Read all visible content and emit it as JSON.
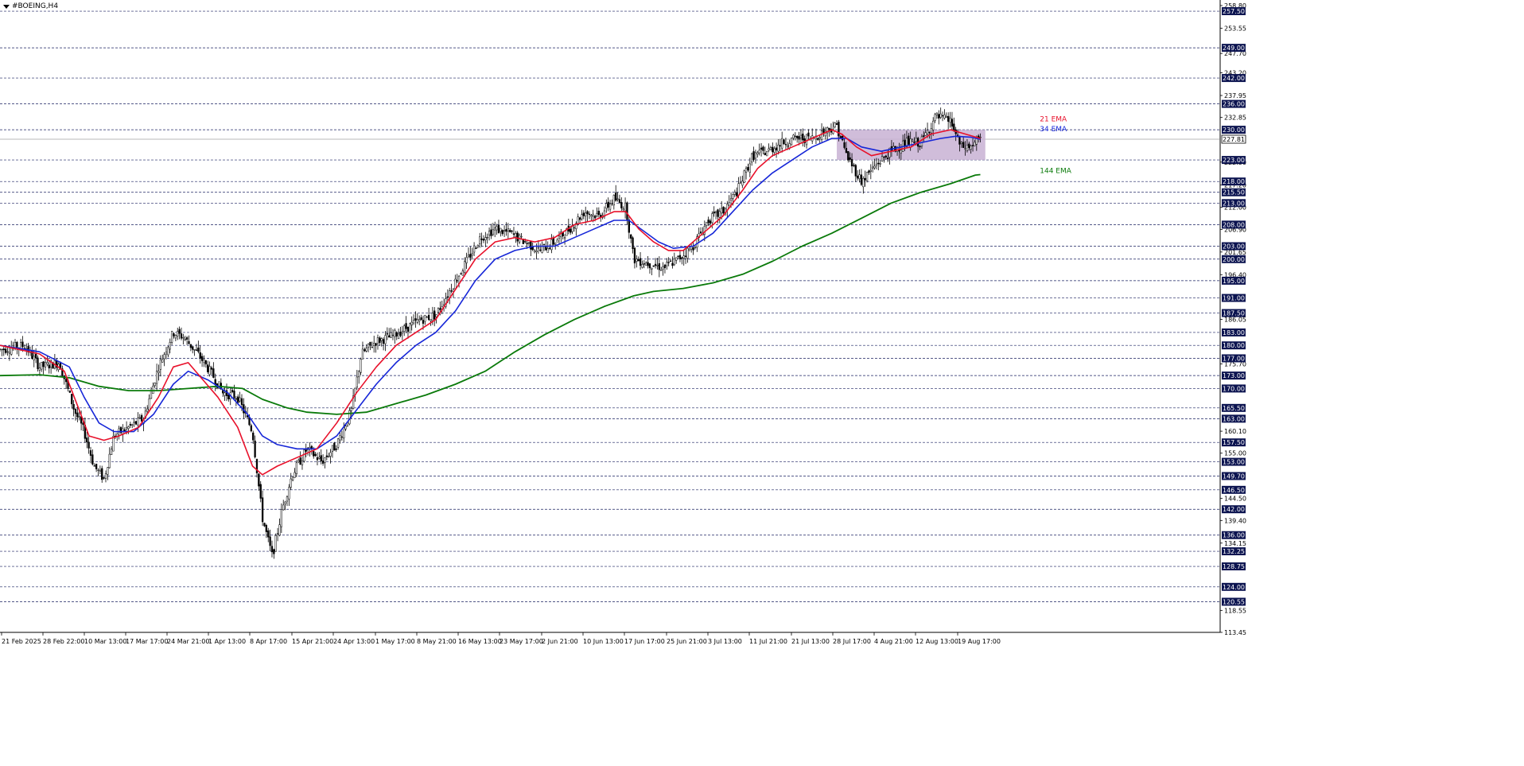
{
  "window": {
    "symbol_title": "#BOEING,H4"
  },
  "colors": {
    "background": "#ffffff",
    "grid_dashed": "#1a2060",
    "ema21": "#e8102a",
    "ema34": "#1626d8",
    "ema144": "#0a7a0a",
    "zone_fill": "#c8b2d4",
    "price_label_bg": "#0c1450",
    "current_price_bg": "#ffffff",
    "candle": "#000000"
  },
  "chart_data": {
    "type": "candlestick",
    "instrument": "#BOEING",
    "timeframe": "H4",
    "y_range": [
      113.45,
      258.8
    ],
    "current_price": 227.81,
    "horizontal_levels": [
      257.5,
      249.0,
      242.0,
      236.0,
      230.0,
      223.0,
      218.0,
      215.5,
      213.0,
      208.0,
      203.0,
      200.0,
      195.0,
      191.0,
      187.5,
      183.0,
      180.0,
      177.0,
      173.0,
      170.0,
      165.5,
      163.0,
      157.5,
      153.0,
      149.7,
      146.5,
      142.0,
      136.0,
      132.25,
      128.75,
      124.0,
      120.55
    ],
    "axis_ticks": [
      "258.80",
      "253.55",
      "247.70",
      "243.20",
      "237.95",
      "232.85",
      "222.50",
      "217.20",
      "212.00",
      "206.90",
      "201.65",
      "196.40",
      "186.05",
      "175.70",
      "160.10",
      "155.00",
      "144.50",
      "139.40",
      "134.15",
      "118.55",
      "113.45"
    ],
    "x_labels": [
      "21 Feb 2025",
      "28 Feb 22:00",
      "10 Mar 13:00",
      "17 Mar 17:00",
      "24 Mar 21:00",
      "1 Apr 13:00",
      "8 Apr 17:00",
      "15 Apr 21:00",
      "24 Apr 13:00",
      "1 May 17:00",
      "8 May 21:00",
      "16 May 13:00",
      "23 May 17:00",
      "2 Jun 21:00",
      "10 Jun 13:00",
      "17 Jun 17:00",
      "25 Jun 21:00",
      "3 Jul 13:00",
      "11 Jul 21:00",
      "21 Jul 13:00",
      "28 Jul 17:00",
      "4 Aug 21:00",
      "12 Aug 13:00",
      "19 Aug 17:00"
    ],
    "price_path": [
      [
        0,
        179
      ],
      [
        0.025,
        180
      ],
      [
        0.04,
        175
      ],
      [
        0.06,
        176
      ],
      [
        0.075,
        165
      ],
      [
        0.085,
        160
      ],
      [
        0.095,
        152
      ],
      [
        0.105,
        149
      ],
      [
        0.115,
        159
      ],
      [
        0.13,
        161
      ],
      [
        0.145,
        163
      ],
      [
        0.16,
        175
      ],
      [
        0.175,
        183
      ],
      [
        0.185,
        182
      ],
      [
        0.2,
        178
      ],
      [
        0.215,
        173
      ],
      [
        0.225,
        169
      ],
      [
        0.24,
        168
      ],
      [
        0.255,
        160
      ],
      [
        0.265,
        140
      ],
      [
        0.275,
        131
      ],
      [
        0.285,
        142
      ],
      [
        0.295,
        150
      ],
      [
        0.31,
        156
      ],
      [
        0.325,
        153
      ],
      [
        0.34,
        157
      ],
      [
        0.355,
        165
      ],
      [
        0.365,
        178
      ],
      [
        0.38,
        181
      ],
      [
        0.395,
        182
      ],
      [
        0.41,
        184
      ],
      [
        0.425,
        186
      ],
      [
        0.44,
        187
      ],
      [
        0.455,
        193
      ],
      [
        0.47,
        199
      ],
      [
        0.485,
        205
      ],
      [
        0.5,
        207
      ],
      [
        0.515,
        206
      ],
      [
        0.53,
        204
      ],
      [
        0.545,
        202
      ],
      [
        0.56,
        204
      ],
      [
        0.575,
        207
      ],
      [
        0.59,
        211
      ],
      [
        0.605,
        210
      ],
      [
        0.62,
        214
      ],
      [
        0.632,
        212
      ],
      [
        0.64,
        200
      ],
      [
        0.655,
        199
      ],
      [
        0.67,
        198
      ],
      [
        0.685,
        200
      ],
      [
        0.7,
        203
      ],
      [
        0.715,
        209
      ],
      [
        0.73,
        211
      ],
      [
        0.745,
        216
      ],
      [
        0.76,
        224
      ],
      [
        0.775,
        225
      ],
      [
        0.79,
        227
      ],
      [
        0.805,
        228
      ],
      [
        0.82,
        228
      ],
      [
        0.835,
        230
      ],
      [
        0.845,
        231
      ],
      [
        0.855,
        224
      ],
      [
        0.87,
        218
      ],
      [
        0.885,
        222
      ],
      [
        0.9,
        225
      ],
      [
        0.915,
        227
      ],
      [
        0.93,
        227
      ],
      [
        0.945,
        233
      ],
      [
        0.96,
        232
      ],
      [
        0.97,
        226
      ],
      [
        0.98,
        226
      ],
      [
        0.99,
        228
      ]
    ],
    "ema21": [
      [
        0,
        180
      ],
      [
        0.04,
        178
      ],
      [
        0.065,
        174
      ],
      [
        0.08,
        165
      ],
      [
        0.09,
        159
      ],
      [
        0.105,
        158
      ],
      [
        0.12,
        159
      ],
      [
        0.14,
        161
      ],
      [
        0.16,
        168
      ],
      [
        0.175,
        175
      ],
      [
        0.19,
        176
      ],
      [
        0.205,
        172
      ],
      [
        0.22,
        168
      ],
      [
        0.24,
        161
      ],
      [
        0.255,
        152
      ],
      [
        0.265,
        150
      ],
      [
        0.28,
        152
      ],
      [
        0.3,
        154
      ],
      [
        0.32,
        156
      ],
      [
        0.34,
        162
      ],
      [
        0.36,
        169
      ],
      [
        0.38,
        175
      ],
      [
        0.4,
        180
      ],
      [
        0.42,
        183
      ],
      [
        0.44,
        186
      ],
      [
        0.46,
        193
      ],
      [
        0.48,
        200
      ],
      [
        0.5,
        204
      ],
      [
        0.52,
        205
      ],
      [
        0.54,
        204
      ],
      [
        0.56,
        205
      ],
      [
        0.58,
        208
      ],
      [
        0.6,
        209
      ],
      [
        0.62,
        211
      ],
      [
        0.632,
        211
      ],
      [
        0.645,
        207
      ],
      [
        0.66,
        204
      ],
      [
        0.675,
        202
      ],
      [
        0.69,
        202
      ],
      [
        0.71,
        206
      ],
      [
        0.73,
        210
      ],
      [
        0.75,
        216
      ],
      [
        0.765,
        221
      ],
      [
        0.78,
        224
      ],
      [
        0.8,
        226
      ],
      [
        0.82,
        228
      ],
      [
        0.84,
        230
      ],
      [
        0.85,
        229
      ],
      [
        0.865,
        226
      ],
      [
        0.88,
        224
      ],
      [
        0.9,
        225
      ],
      [
        0.92,
        226
      ],
      [
        0.94,
        229
      ],
      [
        0.96,
        230
      ],
      [
        0.975,
        229
      ],
      [
        0.99,
        228
      ]
    ],
    "ema34": [
      [
        0,
        180
      ],
      [
        0.04,
        178.5
      ],
      [
        0.07,
        175
      ],
      [
        0.085,
        168
      ],
      [
        0.1,
        162
      ],
      [
        0.115,
        160
      ],
      [
        0.135,
        160
      ],
      [
        0.155,
        164
      ],
      [
        0.175,
        171
      ],
      [
        0.19,
        174
      ],
      [
        0.21,
        172
      ],
      [
        0.23,
        169
      ],
      [
        0.25,
        164
      ],
      [
        0.265,
        159
      ],
      [
        0.28,
        157
      ],
      [
        0.3,
        156
      ],
      [
        0.32,
        156
      ],
      [
        0.34,
        159
      ],
      [
        0.36,
        165
      ],
      [
        0.38,
        171
      ],
      [
        0.4,
        176
      ],
      [
        0.42,
        180
      ],
      [
        0.44,
        183
      ],
      [
        0.46,
        188
      ],
      [
        0.48,
        195
      ],
      [
        0.5,
        200
      ],
      [
        0.52,
        202
      ],
      [
        0.54,
        203
      ],
      [
        0.56,
        203
      ],
      [
        0.58,
        205
      ],
      [
        0.6,
        207
      ],
      [
        0.62,
        209
      ],
      [
        0.635,
        209
      ],
      [
        0.65,
        206.5
      ],
      [
        0.665,
        204
      ],
      [
        0.68,
        202.5
      ],
      [
        0.7,
        203
      ],
      [
        0.72,
        206
      ],
      [
        0.74,
        211
      ],
      [
        0.76,
        216
      ],
      [
        0.78,
        220
      ],
      [
        0.8,
        223
      ],
      [
        0.82,
        226
      ],
      [
        0.84,
        228
      ],
      [
        0.855,
        228
      ],
      [
        0.87,
        226
      ],
      [
        0.89,
        225
      ],
      [
        0.91,
        226
      ],
      [
        0.93,
        227
      ],
      [
        0.95,
        228
      ],
      [
        0.965,
        228.5
      ],
      [
        0.98,
        228.3
      ],
      [
        0.99,
        227.8
      ]
    ],
    "ema144": [
      [
        0,
        173
      ],
      [
        0.04,
        173.2
      ],
      [
        0.07,
        172.5
      ],
      [
        0.1,
        170.5
      ],
      [
        0.13,
        169.5
      ],
      [
        0.16,
        169.5
      ],
      [
        0.19,
        170
      ],
      [
        0.22,
        170.5
      ],
      [
        0.245,
        170
      ],
      [
        0.265,
        167.5
      ],
      [
        0.29,
        165.5
      ],
      [
        0.31,
        164.5
      ],
      [
        0.34,
        164
      ],
      [
        0.37,
        164.5
      ],
      [
        0.4,
        166.5
      ],
      [
        0.43,
        168.5
      ],
      [
        0.46,
        171
      ],
      [
        0.49,
        174
      ],
      [
        0.52,
        178.5
      ],
      [
        0.55,
        182.5
      ],
      [
        0.58,
        186
      ],
      [
        0.61,
        189
      ],
      [
        0.64,
        191.5
      ],
      [
        0.66,
        192.5
      ],
      [
        0.69,
        193.2
      ],
      [
        0.72,
        194.5
      ],
      [
        0.75,
        196.5
      ],
      [
        0.78,
        199.5
      ],
      [
        0.81,
        203
      ],
      [
        0.84,
        206
      ],
      [
        0.87,
        209.5
      ],
      [
        0.9,
        213
      ],
      [
        0.93,
        215.5
      ],
      [
        0.96,
        217.5
      ],
      [
        0.985,
        219.5
      ],
      [
        0.99,
        219.6
      ]
    ],
    "consolidation_zone": {
      "from_x": 0.845,
      "to_x": 0.995,
      "y_top": 230.0,
      "y_bottom": 223.0
    },
    "annotations": [
      {
        "text": "21 EMA",
        "color": "ema21",
        "at": [
          1.05,
          232.0
        ]
      },
      {
        "text": "34 EMA",
        "color": "ema34",
        "at": [
          1.05,
          229.7
        ]
      },
      {
        "text": "144 EMA",
        "color": "ema144",
        "at": [
          1.05,
          220.0
        ]
      }
    ]
  }
}
